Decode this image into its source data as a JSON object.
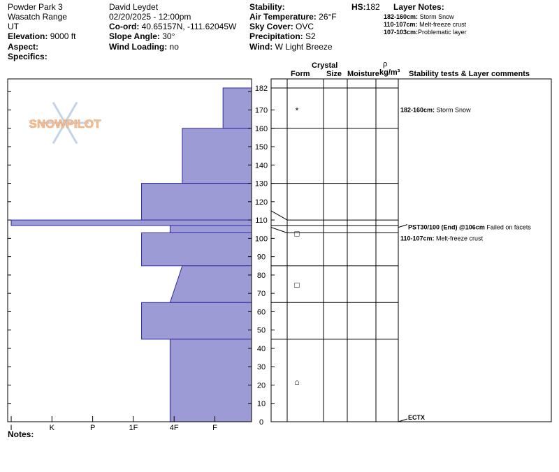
{
  "header": {
    "col1": [
      "Powder Park 3",
      "Wasatch Range",
      "UT"
    ],
    "elevation_label": "Elevation:",
    "elevation_value": "9000 ft",
    "aspect_label": "Aspect:",
    "aspect_value": "",
    "specifics_label": "Specifics:",
    "specifics_value": "",
    "observer": "David Leydet",
    "datetime": "02/20/2025 - 12:00pm",
    "coord_label": "Co-ord:",
    "coord_value": "40.65157N, -111.62045W",
    "slope_label": "Slope Angle:",
    "slope_value": "30°",
    "wind_loading_label": "Wind Loading:",
    "wind_loading_value": "no",
    "stability_label": "Stability:",
    "stability_value": "",
    "air_temp_label": "Air Temperature:",
    "air_temp_value": "26°F",
    "sky_label": "Sky Cover:",
    "sky_value": "OVC",
    "precip_label": "Precipitation:",
    "precip_value": "S2",
    "wind_label": "Wind:",
    "wind_value": "W Light Breeze",
    "hs_label": "HS:",
    "hs_value": "182",
    "layer_notes_title": "Layer Notes:",
    "layer_notes": [
      {
        "range": "182-160cm:",
        "text": "Storm Snow"
      },
      {
        "range": "110-107cm:",
        "text": "Melt-freeze crust"
      },
      {
        "range": "107-103cm:",
        "text": "Problematic layer"
      }
    ]
  },
  "columns": {
    "crystal": "Crystal",
    "form": "Form",
    "size": "Size",
    "moisture": "Moisture",
    "rho": "ρ",
    "rho_unit": "kg/m³",
    "stability_comments": "Stability tests & Layer comments"
  },
  "logo_text": "SNOWPILOT",
  "footer": {
    "notes_label": "Notes:"
  },
  "chart_data": {
    "type": "area",
    "title": "",
    "xlabel": "",
    "ylabel": "",
    "hardness_scale": [
      "I",
      "K",
      "P",
      "1F",
      "4F",
      "F"
    ],
    "ylim": [
      0,
      182
    ],
    "y_ticks": [
      0,
      10,
      20,
      30,
      40,
      50,
      60,
      70,
      80,
      90,
      100,
      110,
      120,
      130,
      140,
      150,
      160,
      170,
      182
    ],
    "hardness_profile": [
      {
        "bottom": 160,
        "top": 182,
        "hardness_index": 0.7
      },
      {
        "bottom": 130,
        "top": 160,
        "hardness_index": 1.7
      },
      {
        "bottom": 110,
        "top": 130,
        "hardness_index": 2.7
      },
      {
        "bottom": 107,
        "top": 110,
        "hardness_index": 5.9
      },
      {
        "bottom": 103,
        "top": 107,
        "hardness_index": 2.0
      },
      {
        "bottom": 85,
        "top": 103,
        "hardness_index": 2.7
      },
      {
        "bottom": 65,
        "top": 85,
        "hardness_index_bottom": 2.0,
        "hardness_index_top": 1.7
      },
      {
        "bottom": 45,
        "top": 65,
        "hardness_index": 2.7
      },
      {
        "bottom": 0,
        "top": 45,
        "hardness_index": 2.0
      }
    ],
    "layer_boundaries": [
      182,
      160,
      130,
      110,
      107,
      103,
      85,
      65,
      45,
      0
    ],
    "crystal_forms": [
      {
        "height": 170,
        "symbol": "*"
      },
      {
        "height": 103,
        "symbol": "□"
      },
      {
        "height": 75,
        "symbol": "□"
      },
      {
        "height": 22,
        "symbol": "⌂"
      }
    ],
    "annotations": [
      {
        "height": 170,
        "bold": "182-160cm:",
        "text": "Storm Snow",
        "arrow": false
      },
      {
        "height": 106,
        "bold": "PST30/100 (End) @106cm",
        "text": "Failed on facets",
        "arrow": true
      },
      {
        "height": 100,
        "bold": "110-107cm:",
        "text": "Melt-freeze crust",
        "arrow": false
      },
      {
        "height": 0,
        "bold": "ECTX",
        "text": "",
        "arrow": true
      }
    ]
  },
  "colors": {
    "fill": "#9d9bd6",
    "fill_stroke": "#2c2aa0",
    "logo": "#c5d3e6",
    "logo_text": "#f2c09a"
  }
}
